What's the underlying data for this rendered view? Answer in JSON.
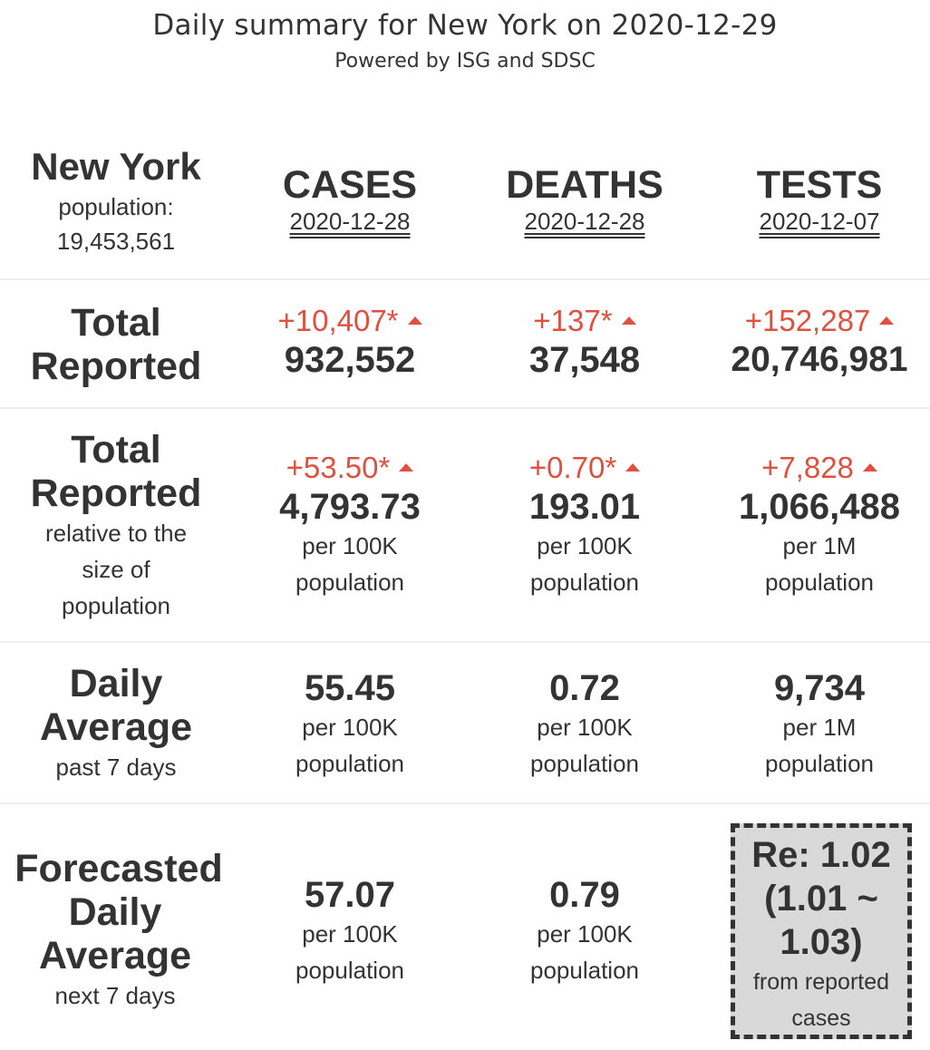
{
  "header": {
    "title": "Daily summary for New York on 2020-12-29",
    "subtitle": "Powered by ISG and SDSC"
  },
  "region": {
    "name": "New York",
    "population_label": "population:",
    "population": "19,453,561"
  },
  "columns": [
    {
      "label": "CASES",
      "date": "2020-12-28"
    },
    {
      "label": "DEATHS",
      "date": "2020-12-28"
    },
    {
      "label": "TESTS",
      "date": "2020-12-07"
    }
  ],
  "rows": {
    "total_reported": {
      "label_line1": "Total",
      "label_line2": "Reported",
      "cases": {
        "delta": "+10,407*",
        "value": "932,552"
      },
      "deaths": {
        "delta": "+137*",
        "value": "37,548"
      },
      "tests": {
        "delta": "+152,287",
        "value": "20,746,981"
      }
    },
    "relative": {
      "label_line1": "Total",
      "label_line2": "Reported",
      "sub1": "relative to the",
      "sub2": "size of",
      "sub3": "population",
      "cases": {
        "delta": "+53.50*",
        "value": "4,793.73",
        "unit1": "per 100K",
        "unit2": "population"
      },
      "deaths": {
        "delta": "+0.70*",
        "value": "193.01",
        "unit1": "per 100K",
        "unit2": "population"
      },
      "tests": {
        "delta": "+7,828",
        "value": "1,066,488",
        "unit1": "per 1M",
        "unit2": "population"
      }
    },
    "daily_average": {
      "label_line1": "Daily",
      "label_line2": "Average",
      "sub": "past 7 days",
      "cases": {
        "value": "55.45",
        "unit1": "per 100K",
        "unit2": "population"
      },
      "deaths": {
        "value": "0.72",
        "unit1": "per 100K",
        "unit2": "population"
      },
      "tests": {
        "value": "9,734",
        "unit1": "per 1M",
        "unit2": "population"
      }
    },
    "forecast": {
      "label_line1": "Forecasted",
      "label_line2": "Daily",
      "label_line3": "Average",
      "sub": "next 7 days",
      "cases": {
        "value": "57.07",
        "unit1": "per 100K",
        "unit2": "population"
      },
      "deaths": {
        "value": "0.79",
        "unit1": "per 100K",
        "unit2": "population"
      },
      "re": {
        "line1": "Re: 1.02",
        "line2": "(1.01 ~",
        "line3": "1.03)",
        "sub1": "from reported",
        "sub2": "cases"
      }
    }
  },
  "colors": {
    "increase": "#e05040",
    "text": "#333333",
    "re_box": "#d9d9d9"
  }
}
